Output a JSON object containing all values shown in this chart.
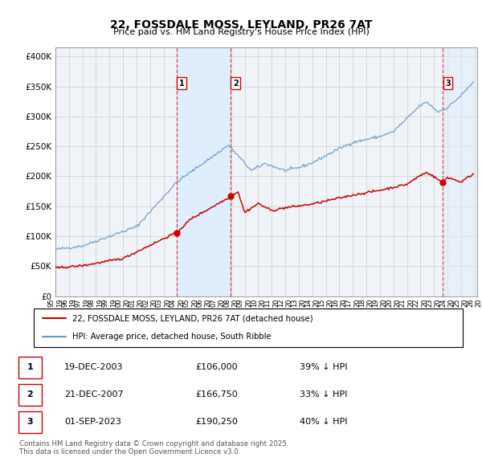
{
  "title": "22, FOSSDALE MOSS, LEYLAND, PR26 7AT",
  "subtitle": "Price paid vs. HM Land Registry's House Price Index (HPI)",
  "ytick_values": [
    0,
    50000,
    100000,
    150000,
    200000,
    250000,
    300000,
    350000,
    400000
  ],
  "ylim": [
    0,
    415000
  ],
  "xlim_start": 1995.0,
  "xlim_end": 2026.2,
  "transactions": [
    {
      "num": 1,
      "date": "19-DEC-2003",
      "price": 106000,
      "pct": "39%",
      "year": 2003.97
    },
    {
      "num": 2,
      "date": "21-DEC-2007",
      "price": 166750,
      "pct": "33%",
      "year": 2007.97
    },
    {
      "num": 3,
      "date": "01-SEP-2023",
      "price": 190250,
      "pct": "40%",
      "year": 2023.67
    }
  ],
  "legend_line1": "22, FOSSDALE MOSS, LEYLAND, PR26 7AT (detached house)",
  "legend_line2": "HPI: Average price, detached house, South Ribble",
  "footnote": "Contains HM Land Registry data © Crown copyright and database right 2025.\nThis data is licensed under the Open Government Licence v3.0.",
  "red_color": "#cc0000",
  "blue_color": "#6699cc",
  "shade_color": "#ddeeff",
  "background_color": "#f0f4f8",
  "grid_color": "#cccccc"
}
